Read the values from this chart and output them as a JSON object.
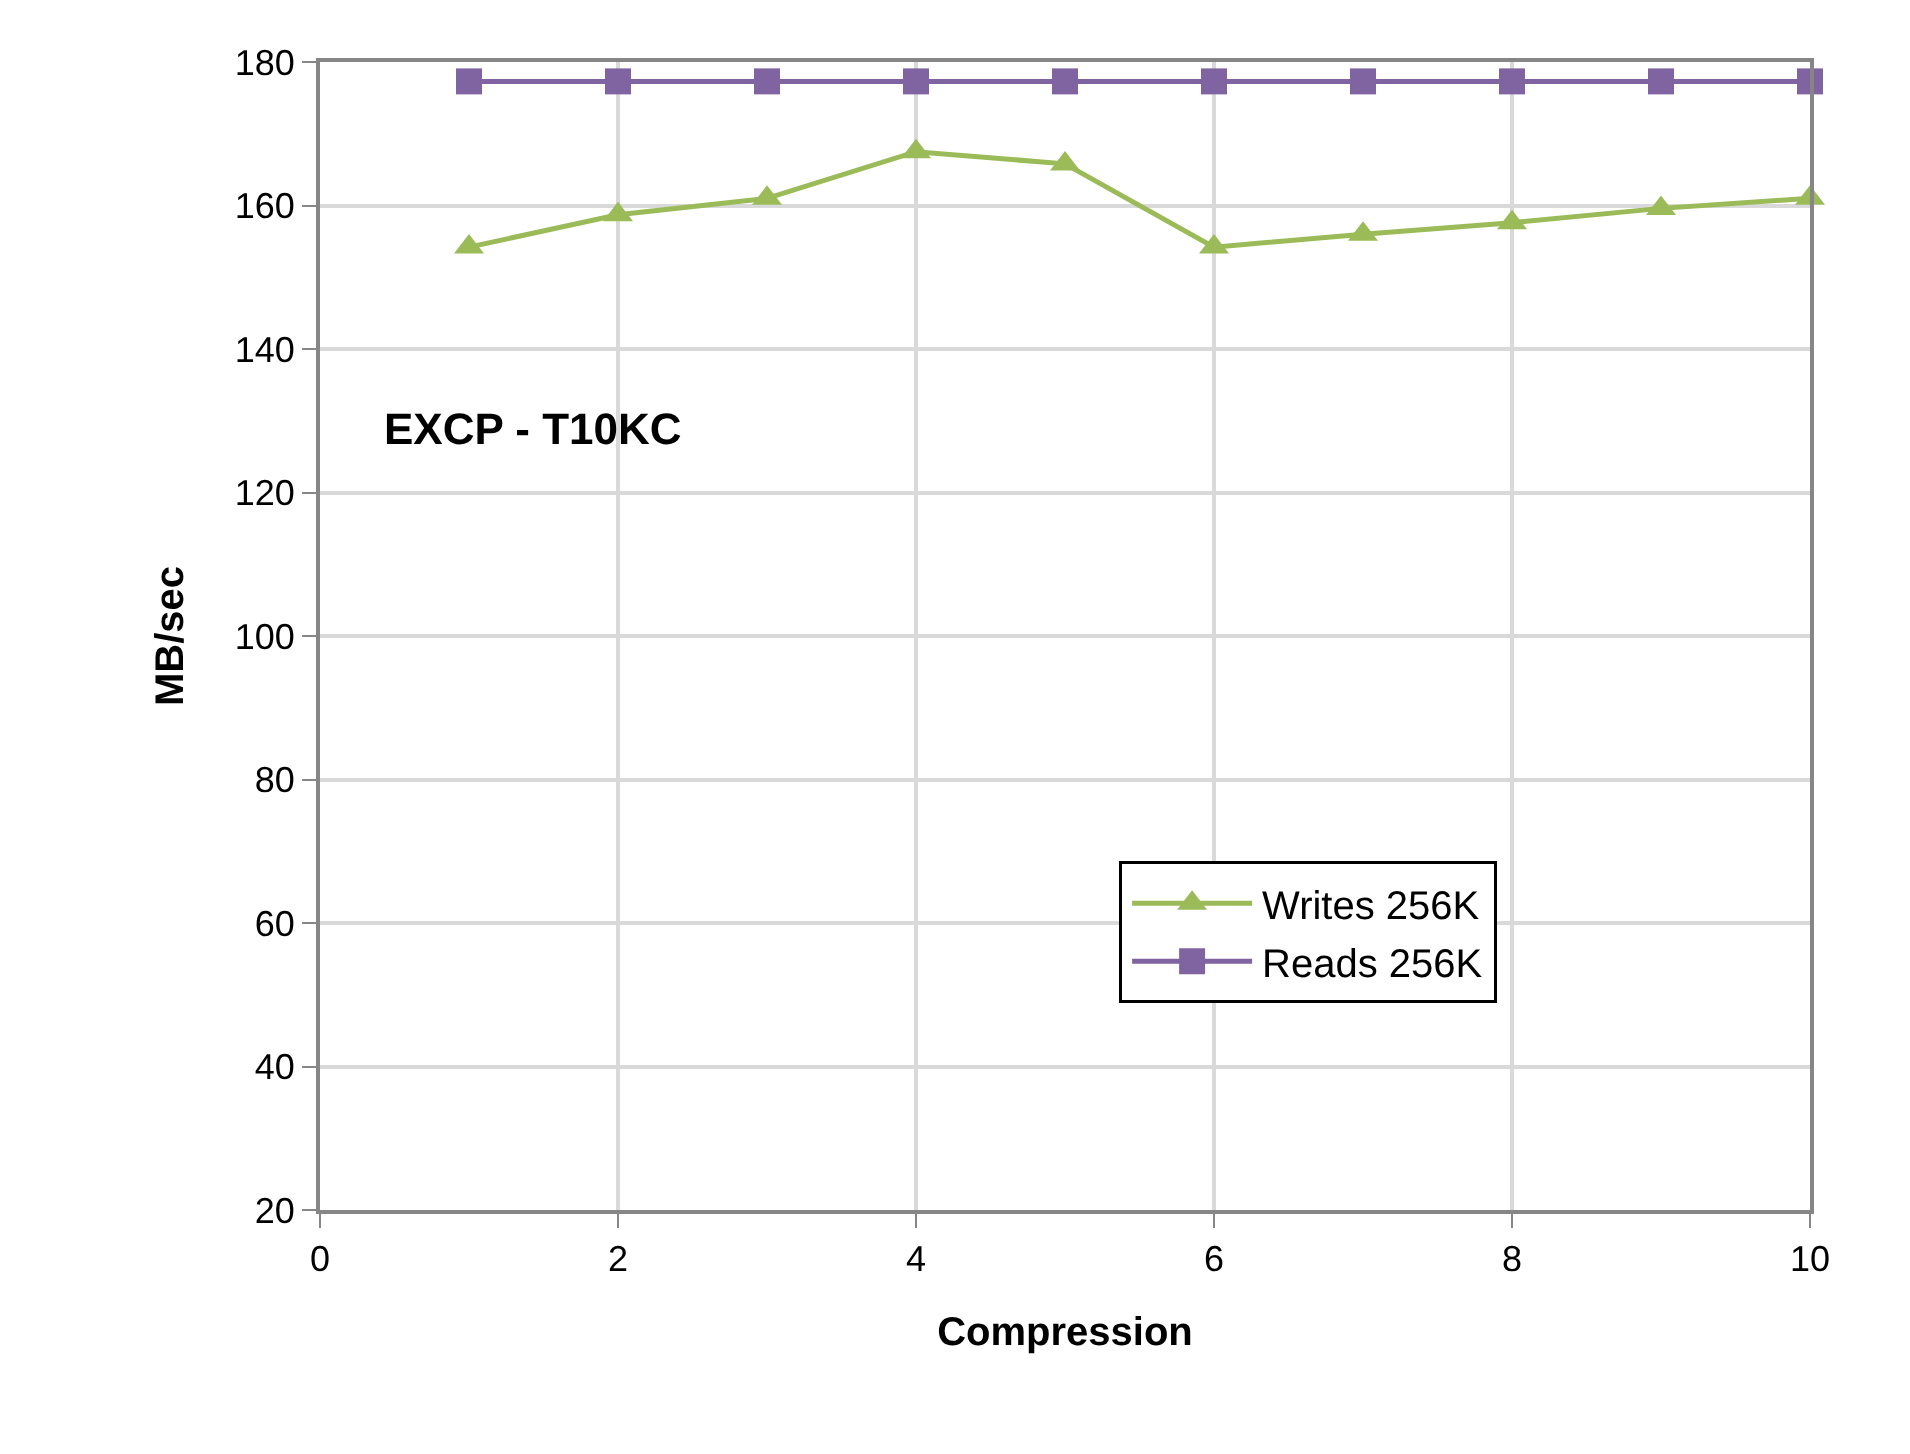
{
  "chart_data": {
    "type": "line",
    "xlabel": "Compression",
    "ylabel": "MB/sec",
    "annotations": [
      "EXCP - T10KC"
    ],
    "x": [
      1,
      2,
      3,
      4,
      5,
      6,
      7,
      8,
      9,
      10
    ],
    "series": [
      {
        "name": "Writes 256K",
        "color": "#9bbb59",
        "marker": "triangle",
        "values": [
          154.2,
          158.7,
          161,
          167.5,
          165.8,
          154.2,
          156,
          157.6,
          159.6,
          161
        ]
      },
      {
        "name": "Reads 256K",
        "color": "#8064a2",
        "marker": "square",
        "values": [
          177.3,
          177.3,
          177.3,
          177.3,
          177.3,
          177.3,
          177.3,
          177.3,
          177.3,
          177.3
        ]
      }
    ],
    "xlim": [
      0,
      10
    ],
    "xticks": [
      0,
      2,
      4,
      6,
      8,
      10
    ],
    "ylim": [
      20,
      180
    ],
    "yticks": [
      20,
      40,
      60,
      80,
      100,
      120,
      140,
      160,
      180
    ],
    "grid": true,
    "legend": "bottom right"
  }
}
